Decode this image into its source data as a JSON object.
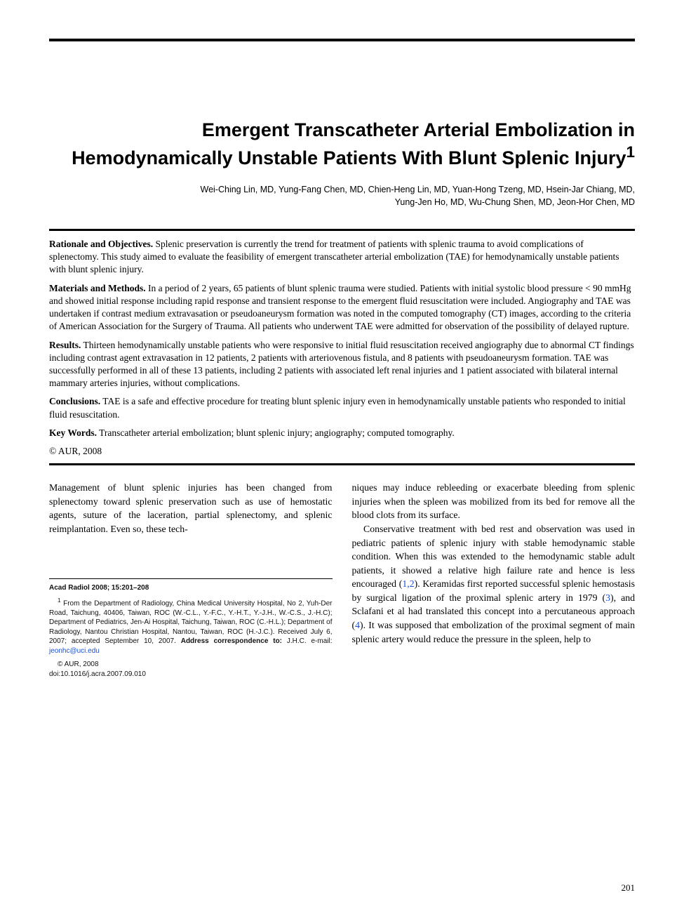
{
  "colors": {
    "text": "#000000",
    "link": "#1a4fd6",
    "background": "#ffffff",
    "rule": "#000000"
  },
  "typography": {
    "title_font": "Arial",
    "title_size_pt": 20,
    "title_weight": "bold",
    "body_font": "Times New Roman",
    "body_size_pt": 10,
    "footnote_font": "Arial",
    "footnote_size_pt": 7.5
  },
  "title": "Emergent Transcatheter Arterial Embolization in Hemodynamically Unstable Patients With Blunt Splenic Injury",
  "title_sup": "1",
  "authors_line1": "Wei-Ching Lin, MD, Yung-Fang Chen, MD, Chien-Heng Lin, MD, Yuan-Hong Tzeng, MD, Hsein-Jar Chiang, MD,",
  "authors_line2": "Yung-Jen Ho, MD, Wu-Chung Shen, MD, Jeon-Hor Chen, MD",
  "abstract": {
    "rationale": {
      "head": "Rationale and Objectives.",
      "text": " Splenic preservation is currently the trend for treatment of patients with splenic trauma to avoid complications of splenectomy. This study aimed to evaluate the feasibility of emergent transcatheter arterial embolization (TAE) for hemodynamically unstable patients with blunt splenic injury."
    },
    "materials": {
      "head": "Materials and Methods.",
      "text": " In a period of 2 years, 65 patients of blunt splenic trauma were studied. Patients with initial systolic blood pressure < 90 mmHg and showed initial response including rapid response and transient response to the emergent fluid resuscitation were included. Angiography and TAE was undertaken if contrast medium extravasation or pseudoaneurysm formation was noted in the computed tomography (CT) images, according to the criteria of American Association for the Surgery of Trauma. All patients who underwent TAE were admitted for observation of the possibility of delayed rupture."
    },
    "results": {
      "head": "Results.",
      "text": " Thirteen hemodynamically unstable patients who were responsive to initial fluid resuscitation received angiography due to abnormal CT findings including contrast agent extravasation in 12 patients, 2 patients with arteriovenous fistula, and 8 patients with pseudoaneurysm formation. TAE was successfully performed in all of these 13 patients, including 2 patients with associated left renal injuries and 1 patient associated with bilateral internal mammary arteries injuries, without complications."
    },
    "conclusions": {
      "head": "Conclusions.",
      "text": " TAE is a safe and effective procedure for treating blunt splenic injury even in hemodynamically unstable patients who responded to initial fluid resuscitation."
    },
    "keywords": {
      "head": "Key Words.",
      "text": " Transcatheter arterial embolization; blunt splenic injury; angiography; computed tomography."
    },
    "copyright": "© AUR, 2008"
  },
  "body": {
    "col1_p1": "Management of blunt splenic injuries has been changed from splenectomy toward splenic preservation such as use of hemostatic agents, suture of the laceration, partial splenectomy, and splenic reimplantation. Even so, these tech-",
    "col2_p1": "niques may induce rebleeding or exacerbate bleeding from splenic injuries when the spleen was mobilized from its bed for remove all the blood clots from its surface.",
    "col2_p2a": "Conservative treatment with bed rest and observation was used in pediatric patients of splenic injury with stable hemodynamic stable condition. When this was extended to the hemodynamic stable adult patients, it showed a relative high failure rate and hence is less encouraged (",
    "col2_ref12": "1,2",
    "col2_p2b": "). Keramidas first reported successful splenic hemostasis by surgical ligation of the proximal splenic artery in 1979 (",
    "col2_ref3": "3",
    "col2_p2c": "), and Sclafani et al had translated this concept into a percutaneous approach (",
    "col2_ref4": "4",
    "col2_p2d": "). It was supposed that embolization of the proximal segment of main splenic artery would reduce the pressure in the spleen, help to"
  },
  "footnotes": {
    "journal": "Acad Radiol 2008; 15:201–208",
    "affil_sup": "1",
    "affil_a": " From the Department of Radiology, China Medical University Hospital, No 2, Yuh-Der Road, Taichung, 40406, Taiwan, ROC (W.-C.L., Y.-F.C., Y.-H.T., Y.-J.H., W.-C.S., J.-H.C); Department of Pediatrics, Jen-Ai Hospital, Taichung, Taiwan, ROC (C.-H.L.); Department of Radiology, Nantou Christian Hospital, Nantou, Taiwan, ROC (H.-J.C.). Received July 6, 2007; accepted September 10, 2007. ",
    "affil_bold": "Address correspondence to:",
    "affil_b": " J.H.C. e-mail: ",
    "email": "jeonhc@uci.edu",
    "copy": "© AUR, 2008",
    "doi": "doi:10.1016/j.acra.2007.09.010"
  },
  "page_number": "201"
}
